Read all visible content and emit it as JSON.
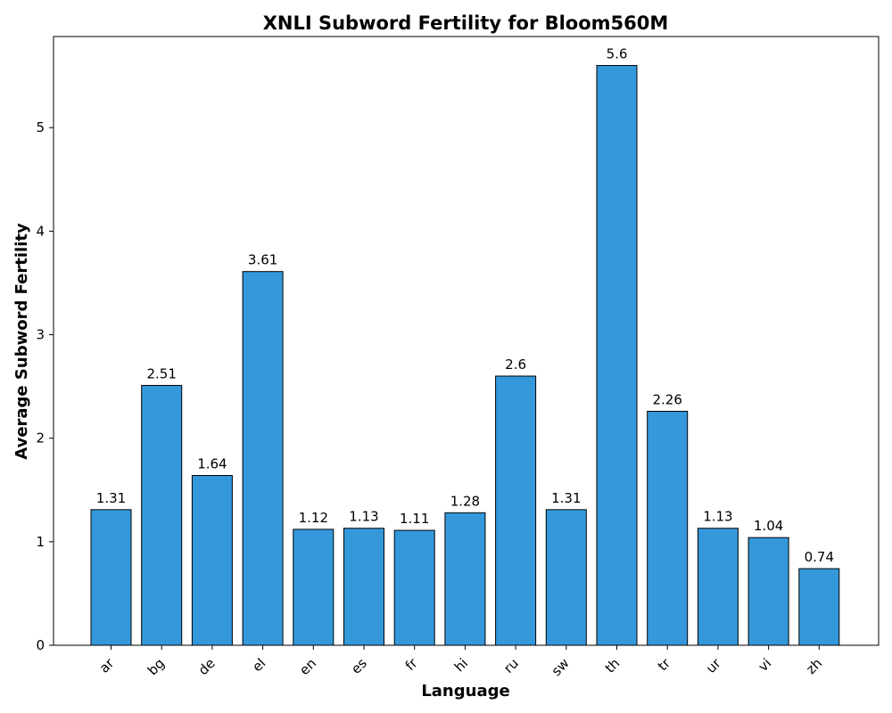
{
  "chart_data": {
    "type": "bar",
    "title": "XNLI Subword Fertility for Bloom560M",
    "xlabel": "Language",
    "ylabel": "Average Subword Fertility",
    "categories": [
      "ar",
      "bg",
      "de",
      "el",
      "en",
      "es",
      "fr",
      "hi",
      "ru",
      "sw",
      "th",
      "tr",
      "ur",
      "vi",
      "zh"
    ],
    "values": [
      1.31,
      2.51,
      1.64,
      3.61,
      1.12,
      1.13,
      1.11,
      1.28,
      2.6,
      1.31,
      5.6,
      2.26,
      1.13,
      1.04,
      0.74
    ],
    "value_labels": [
      "1.31",
      "2.51",
      "1.64",
      "3.61",
      "1.12",
      "1.13",
      "1.11",
      "1.28",
      "2.6",
      "1.31",
      "5.6",
      "2.26",
      "1.13",
      "1.04",
      "0.74"
    ],
    "yticks": [
      0,
      1,
      2,
      3,
      4,
      5
    ],
    "ylim": [
      0,
      5.88
    ],
    "grid": false,
    "legend": "none",
    "bar_color": "#3498db",
    "bar_edge_color": "#000000"
  }
}
